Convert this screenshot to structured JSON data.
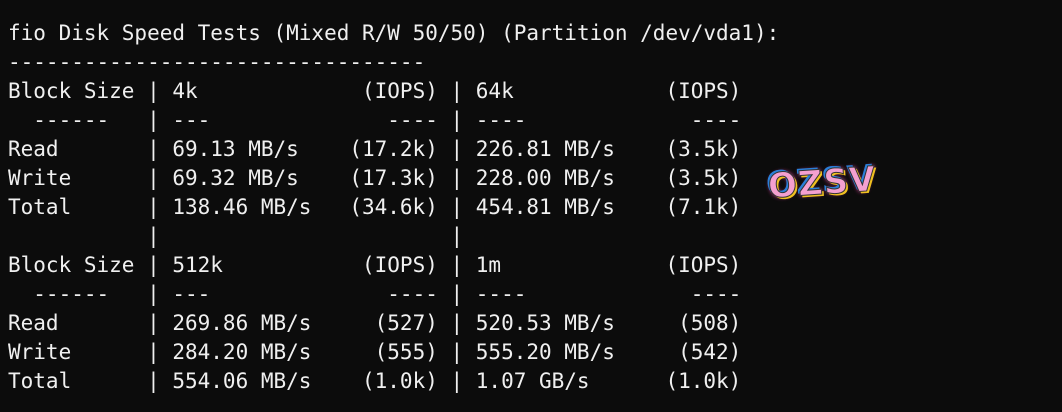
{
  "title": "fio Disk Speed Tests (Mixed R/W 50/50) (Partition /dev/vda1):",
  "separator": "---------------------------------",
  "column_separator": "|",
  "blocks": [
    {
      "header": [
        "Block Size",
        "4k",
        "(IOPS)",
        "64k",
        "(IOPS)"
      ],
      "divider": [
        "------",
        "---",
        "----",
        "----",
        "----"
      ],
      "rows": [
        [
          "Read",
          "69.13 MB/s",
          "(17.2k)",
          "226.81 MB/s",
          "(3.5k)"
        ],
        [
          "Write",
          "69.32 MB/s",
          "(17.3k)",
          "228.00 MB/s",
          "(3.5k)"
        ],
        [
          "Total",
          "138.46 MB/s",
          "(34.6k)",
          "454.81 MB/s",
          "(7.1k)"
        ]
      ]
    },
    {
      "header": [
        "Block Size",
        "512k",
        "(IOPS)",
        "1m",
        "(IOPS)"
      ],
      "divider": [
        "------",
        "---",
        "----",
        "----",
        "----"
      ],
      "rows": [
        [
          "Read",
          "269.86 MB/s",
          "(527)",
          "520.53 MB/s",
          "(508)"
        ],
        [
          "Write",
          "284.20 MB/s",
          "(555)",
          "555.20 MB/s",
          "(542)"
        ],
        [
          "Total",
          "554.06 MB/s",
          "(1.0k)",
          "1.07 GB/s",
          "(1.0k)"
        ]
      ]
    }
  ],
  "watermark": "OZSV"
}
